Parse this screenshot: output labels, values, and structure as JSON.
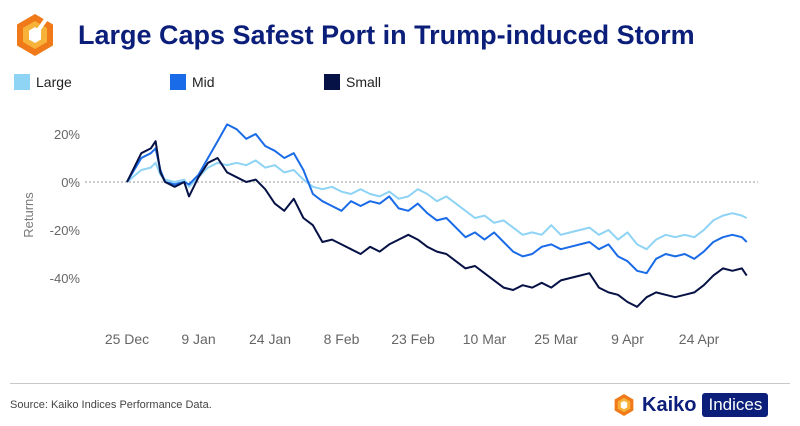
{
  "header": {
    "title": "Large Caps Safest Port in Trump-induced Storm",
    "brand_colors": {
      "dark": "#f07a1a",
      "light": "#f7b23a",
      "navy": "#0b1f7a"
    }
  },
  "footer": {
    "source": "Source: Kaiko Indices Performance Data.",
    "brand_name": "Kaiko",
    "brand_badge": "Indices"
  },
  "chart_data": {
    "type": "line",
    "ylabel": "Returns",
    "xlabel": "",
    "ylim": [
      -57,
      27
    ],
    "yticks": [
      20,
      0,
      -20,
      -40
    ],
    "ytick_labels": [
      "20%",
      "0%",
      "-20%",
      "-40%"
    ],
    "xticks": [
      0,
      15,
      30,
      45,
      60,
      75,
      90,
      105,
      120
    ],
    "xtick_labels": [
      "25 Dec",
      "9 Jan",
      "24 Jan",
      "8 Feb",
      "23 Feb",
      "10 Mar",
      "25 Mar",
      "9 Apr",
      "24 Apr"
    ],
    "reference_line": 0,
    "legend_position": "top",
    "series": [
      {
        "name": "Large",
        "color": "#8fd3f5",
        "points": [
          [
            0,
            0
          ],
          [
            3,
            5
          ],
          [
            5,
            6
          ],
          [
            6,
            8
          ],
          [
            7,
            3
          ],
          [
            8,
            1
          ],
          [
            10,
            0
          ],
          [
            12,
            1
          ],
          [
            13,
            -2
          ],
          [
            15,
            2
          ],
          [
            17,
            6
          ],
          [
            19,
            8
          ],
          [
            21,
            7
          ],
          [
            23,
            8
          ],
          [
            25,
            7
          ],
          [
            27,
            9
          ],
          [
            29,
            6
          ],
          [
            31,
            7
          ],
          [
            33,
            4
          ],
          [
            35,
            5
          ],
          [
            37,
            1
          ],
          [
            39,
            -2
          ],
          [
            41,
            -3
          ],
          [
            43,
            -2
          ],
          [
            45,
            -4
          ],
          [
            47,
            -5
          ],
          [
            49,
            -3
          ],
          [
            51,
            -5
          ],
          [
            53,
            -6
          ],
          [
            55,
            -4
          ],
          [
            57,
            -7
          ],
          [
            59,
            -6
          ],
          [
            61,
            -3
          ],
          [
            63,
            -5
          ],
          [
            65,
            -8
          ],
          [
            67,
            -6
          ],
          [
            69,
            -9
          ],
          [
            71,
            -12
          ],
          [
            73,
            -15
          ],
          [
            75,
            -14
          ],
          [
            77,
            -17
          ],
          [
            79,
            -16
          ],
          [
            81,
            -19
          ],
          [
            83,
            -22
          ],
          [
            85,
            -21
          ],
          [
            87,
            -22
          ],
          [
            89,
            -18
          ],
          [
            91,
            -22
          ],
          [
            93,
            -21
          ],
          [
            95,
            -20
          ],
          [
            97,
            -19
          ],
          [
            99,
            -22
          ],
          [
            101,
            -20
          ],
          [
            103,
            -24
          ],
          [
            105,
            -21
          ],
          [
            107,
            -26
          ],
          [
            109,
            -28
          ],
          [
            111,
            -24
          ],
          [
            113,
            -22
          ],
          [
            115,
            -23
          ],
          [
            117,
            -22
          ],
          [
            119,
            -23
          ],
          [
            121,
            -20
          ],
          [
            123,
            -16
          ],
          [
            125,
            -14
          ],
          [
            127,
            -13
          ],
          [
            129,
            -14
          ],
          [
            130,
            -15
          ]
        ]
      },
      {
        "name": "Mid",
        "color": "#1a6be8",
        "points": [
          [
            0,
            0
          ],
          [
            3,
            10
          ],
          [
            5,
            12
          ],
          [
            6,
            14
          ],
          [
            7,
            5
          ],
          [
            8,
            0
          ],
          [
            10,
            -1
          ],
          [
            12,
            0
          ],
          [
            13,
            -1
          ],
          [
            15,
            3
          ],
          [
            17,
            10
          ],
          [
            19,
            17
          ],
          [
            21,
            24
          ],
          [
            23,
            22
          ],
          [
            25,
            18
          ],
          [
            27,
            20
          ],
          [
            29,
            15
          ],
          [
            31,
            13
          ],
          [
            33,
            10
          ],
          [
            35,
            12
          ],
          [
            37,
            5
          ],
          [
            39,
            -5
          ],
          [
            41,
            -8
          ],
          [
            43,
            -10
          ],
          [
            45,
            -12
          ],
          [
            47,
            -8
          ],
          [
            49,
            -10
          ],
          [
            51,
            -8
          ],
          [
            53,
            -9
          ],
          [
            55,
            -6
          ],
          [
            57,
            -11
          ],
          [
            59,
            -12
          ],
          [
            61,
            -9
          ],
          [
            63,
            -13
          ],
          [
            65,
            -16
          ],
          [
            67,
            -15
          ],
          [
            69,
            -19
          ],
          [
            71,
            -23
          ],
          [
            73,
            -21
          ],
          [
            75,
            -24
          ],
          [
            77,
            -21
          ],
          [
            79,
            -25
          ],
          [
            81,
            -29
          ],
          [
            83,
            -31
          ],
          [
            85,
            -30
          ],
          [
            87,
            -27
          ],
          [
            89,
            -26
          ],
          [
            91,
            -28
          ],
          [
            93,
            -27
          ],
          [
            95,
            -26
          ],
          [
            97,
            -25
          ],
          [
            99,
            -28
          ],
          [
            101,
            -26
          ],
          [
            103,
            -31
          ],
          [
            105,
            -33
          ],
          [
            107,
            -37
          ],
          [
            109,
            -38
          ],
          [
            111,
            -32
          ],
          [
            113,
            -30
          ],
          [
            115,
            -31
          ],
          [
            117,
            -30
          ],
          [
            119,
            -32
          ],
          [
            121,
            -29
          ],
          [
            123,
            -25
          ],
          [
            125,
            -23
          ],
          [
            127,
            -22
          ],
          [
            129,
            -23
          ],
          [
            130,
            -25
          ]
        ]
      },
      {
        "name": "Small",
        "color": "#061245",
        "points": [
          [
            0,
            0
          ],
          [
            3,
            12
          ],
          [
            5,
            14
          ],
          [
            6,
            17
          ],
          [
            7,
            4
          ],
          [
            8,
            0
          ],
          [
            10,
            -2
          ],
          [
            12,
            0
          ],
          [
            13,
            -6
          ],
          [
            15,
            2
          ],
          [
            17,
            8
          ],
          [
            19,
            10
          ],
          [
            21,
            4
          ],
          [
            23,
            2
          ],
          [
            25,
            0
          ],
          [
            27,
            1
          ],
          [
            29,
            -3
          ],
          [
            31,
            -9
          ],
          [
            33,
            -12
          ],
          [
            35,
            -7
          ],
          [
            37,
            -15
          ],
          [
            39,
            -18
          ],
          [
            41,
            -25
          ],
          [
            43,
            -24
          ],
          [
            45,
            -26
          ],
          [
            47,
            -28
          ],
          [
            49,
            -30
          ],
          [
            51,
            -27
          ],
          [
            53,
            -29
          ],
          [
            55,
            -26
          ],
          [
            57,
            -24
          ],
          [
            59,
            -22
          ],
          [
            61,
            -24
          ],
          [
            63,
            -27
          ],
          [
            65,
            -29
          ],
          [
            67,
            -30
          ],
          [
            69,
            -33
          ],
          [
            71,
            -36
          ],
          [
            73,
            -35
          ],
          [
            75,
            -38
          ],
          [
            77,
            -41
          ],
          [
            79,
            -44
          ],
          [
            81,
            -45
          ],
          [
            83,
            -43
          ],
          [
            85,
            -44
          ],
          [
            87,
            -42
          ],
          [
            89,
            -44
          ],
          [
            91,
            -41
          ],
          [
            93,
            -40
          ],
          [
            95,
            -39
          ],
          [
            97,
            -38
          ],
          [
            99,
            -44
          ],
          [
            101,
            -46
          ],
          [
            103,
            -47
          ],
          [
            105,
            -50
          ],
          [
            107,
            -52
          ],
          [
            109,
            -48
          ],
          [
            111,
            -46
          ],
          [
            113,
            -47
          ],
          [
            115,
            -48
          ],
          [
            117,
            -47
          ],
          [
            119,
            -46
          ],
          [
            121,
            -43
          ],
          [
            123,
            -39
          ],
          [
            125,
            -36
          ],
          [
            127,
            -37
          ],
          [
            129,
            -36
          ],
          [
            130,
            -39
          ]
        ]
      }
    ]
  }
}
